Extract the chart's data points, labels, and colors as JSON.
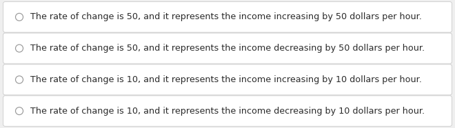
{
  "options": [
    "The rate of change is 50, and it represents the income increasing by 50 dollars per hour.",
    "The rate of change is 50, and it represents the income decreasing by 50 dollars per hour.",
    "The rate of change is 10, and it represents the income increasing by 10 dollars per hour.",
    "The rate of change is 10, and it represents the income decreasing by 10 dollars per hour."
  ],
  "background_color": "#efefef",
  "box_color": "#ffffff",
  "border_color": "#d0d0d0",
  "text_color": "#2a2a2a",
  "radio_border_color": "#999999",
  "radio_fill_color": "#ffffff",
  "font_size": 9.2,
  "fig_width": 6.6,
  "fig_height": 1.87,
  "dpi": 100
}
